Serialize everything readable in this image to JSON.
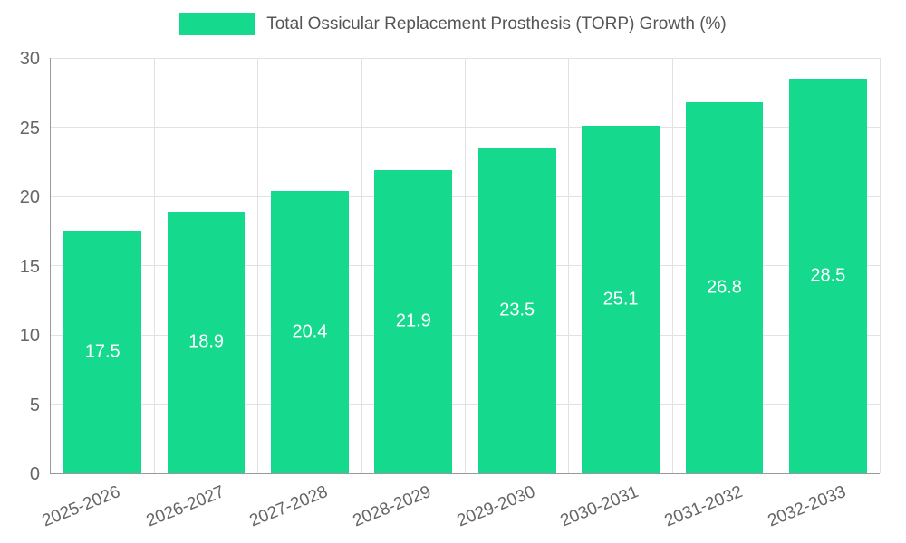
{
  "legend": {
    "label": "Total Ossicular Replacement Prosthesis (TORP) Growth (%)"
  },
  "chart_data": {
    "type": "bar",
    "title": "Total Ossicular Replacement Prosthesis (TORP) Growth (%)",
    "categories": [
      "2025-2026",
      "2026-2027",
      "2027-2028",
      "2028-2029",
      "2029-2030",
      "2030-2031",
      "2031-2032",
      "2032-2033"
    ],
    "values": [
      17.5,
      18.9,
      20.4,
      21.9,
      23.5,
      25.1,
      26.8,
      28.5
    ],
    "xlabel": "",
    "ylabel": "",
    "ylim": [
      0,
      30
    ],
    "yticks": [
      0,
      5,
      10,
      15,
      20,
      25,
      30
    ],
    "grid": true,
    "legend_position": "top",
    "bar_color": "#15d98c",
    "value_label_color": "#ffffff",
    "axis_text_color": "#666666",
    "gridline_color": "#e2e2e2"
  }
}
